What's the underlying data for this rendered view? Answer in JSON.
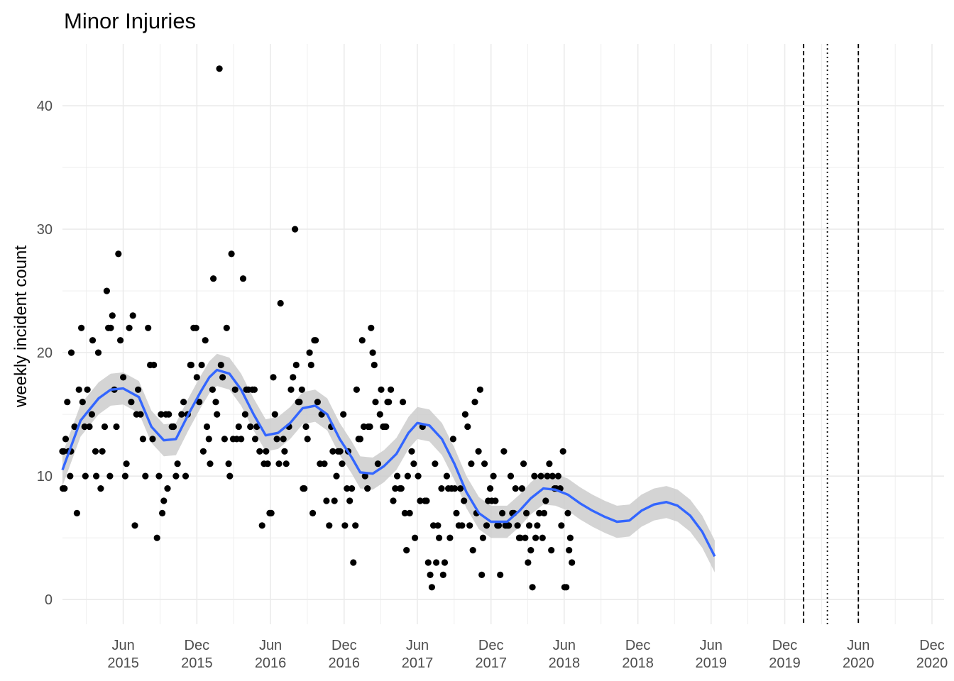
{
  "chart_data": {
    "type": "scatter",
    "title": "Minor Injuries",
    "xlabel": "",
    "ylabel": "weekly incident count",
    "x_type": "date",
    "xlim": [
      "2015-01-01",
      "2020-12-31"
    ],
    "ylim": [
      -2,
      45
    ],
    "y_ticks": [
      0,
      10,
      20,
      30,
      40
    ],
    "x_ticks": [
      {
        "date": "2015-06-01",
        "line1": "Jun",
        "line2": "2015"
      },
      {
        "date": "2015-12-01",
        "line1": "Dec",
        "line2": "2015"
      },
      {
        "date": "2016-06-01",
        "line1": "Jun",
        "line2": "2016"
      },
      {
        "date": "2016-12-01",
        "line1": "Dec",
        "line2": "2016"
      },
      {
        "date": "2017-06-01",
        "line1": "Jun",
        "line2": "2017"
      },
      {
        "date": "2017-12-01",
        "line1": "Dec",
        "line2": "2017"
      },
      {
        "date": "2018-06-01",
        "line1": "Jun",
        "line2": "2018"
      },
      {
        "date": "2018-12-01",
        "line1": "Dec",
        "line2": "2018"
      },
      {
        "date": "2019-06-01",
        "line1": "Jun",
        "line2": "2019"
      },
      {
        "date": "2019-12-01",
        "line1": "Dec",
        "line2": "2019"
      },
      {
        "date": "2020-06-01",
        "line1": "Jun",
        "line2": "2020"
      },
      {
        "date": "2020-12-01",
        "line1": "Dec",
        "line2": "2020"
      }
    ],
    "grid": true,
    "legend": "none",
    "colors": {
      "points": "#000000",
      "smooth": "#3366ff",
      "band": "#cccccc",
      "grid": "#ebebeb"
    },
    "vlines": [
      {
        "date": "2020-01-17",
        "style": "dashed"
      },
      {
        "date": "2020-03-16",
        "style": "dotted"
      },
      {
        "date": "2020-06-01",
        "style": "dashed"
      }
    ],
    "points": [
      [
        "2015-01-01",
        12
      ],
      [
        "2015-01-02",
        9
      ],
      [
        "2015-01-04",
        12
      ],
      [
        "2015-01-06",
        9
      ],
      [
        "2015-01-09",
        13
      ],
      [
        "2015-01-13",
        16
      ],
      [
        "2015-01-16",
        12
      ],
      [
        "2015-01-20",
        10
      ],
      [
        "2015-01-22",
        12
      ],
      [
        "2015-01-23",
        20
      ],
      [
        "2015-01-31",
        14
      ],
      [
        "2015-02-06",
        7
      ],
      [
        "2015-02-11",
        17
      ],
      [
        "2015-02-17",
        22
      ],
      [
        "2015-02-20",
        16
      ],
      [
        "2015-02-25",
        14
      ],
      [
        "2015-02-27",
        10
      ],
      [
        "2015-03-04",
        17
      ],
      [
        "2015-03-09",
        14
      ],
      [
        "2015-03-15",
        15
      ],
      [
        "2015-03-17",
        21
      ],
      [
        "2015-03-24",
        12
      ],
      [
        "2015-03-26",
        10
      ],
      [
        "2015-03-31",
        20
      ],
      [
        "2015-04-06",
        9
      ],
      [
        "2015-04-10",
        12
      ],
      [
        "2015-04-16",
        14
      ],
      [
        "2015-04-21",
        25
      ],
      [
        "2015-04-25",
        22
      ],
      [
        "2015-04-29",
        10
      ],
      [
        "2015-05-01",
        22
      ],
      [
        "2015-05-05",
        23
      ],
      [
        "2015-05-10",
        17
      ],
      [
        "2015-05-15",
        14
      ],
      [
        "2015-05-20",
        28
      ],
      [
        "2015-05-25",
        21
      ],
      [
        "2015-06-01",
        18
      ],
      [
        "2015-06-06",
        10
      ],
      [
        "2015-06-09",
        11
      ],
      [
        "2015-06-16",
        22
      ],
      [
        "2015-06-21",
        16
      ],
      [
        "2015-06-25",
        23
      ],
      [
        "2015-06-30",
        6
      ],
      [
        "2015-07-04",
        15
      ],
      [
        "2015-07-08",
        17
      ],
      [
        "2015-07-14",
        15
      ],
      [
        "2015-07-20",
        13
      ],
      [
        "2015-07-26",
        10
      ],
      [
        "2015-08-02",
        22
      ],
      [
        "2015-08-07",
        19
      ],
      [
        "2015-08-13",
        13
      ],
      [
        "2015-08-16",
        19
      ],
      [
        "2015-08-24",
        5
      ],
      [
        "2015-08-29",
        10
      ],
      [
        "2015-09-03",
        15
      ],
      [
        "2015-09-06",
        7
      ],
      [
        "2015-09-10",
        8
      ],
      [
        "2015-09-15",
        15
      ],
      [
        "2015-09-19",
        9
      ],
      [
        "2015-09-22",
        15
      ],
      [
        "2015-09-30",
        14
      ],
      [
        "2015-10-04",
        14
      ],
      [
        "2015-10-10",
        10
      ],
      [
        "2015-10-14",
        11
      ],
      [
        "2015-10-24",
        15
      ],
      [
        "2015-10-29",
        16
      ],
      [
        "2015-11-03",
        10
      ],
      [
        "2015-11-08",
        15
      ],
      [
        "2015-11-15",
        19
      ],
      [
        "2015-11-17",
        19
      ],
      [
        "2015-11-23",
        22
      ],
      [
        "2015-11-29",
        22
      ],
      [
        "2015-12-01",
        18
      ],
      [
        "2015-12-07",
        16
      ],
      [
        "2015-12-13",
        19
      ],
      [
        "2015-12-17",
        12
      ],
      [
        "2015-12-22",
        21
      ],
      [
        "2015-12-26",
        14
      ],
      [
        "2015-12-31",
        13
      ],
      [
        "2016-01-03",
        11
      ],
      [
        "2016-01-09",
        17
      ],
      [
        "2016-01-11",
        26
      ],
      [
        "2016-01-17",
        16
      ],
      [
        "2016-01-20",
        15
      ],
      [
        "2016-01-26",
        43
      ],
      [
        "2016-01-30",
        19
      ],
      [
        "2016-02-03",
        18
      ],
      [
        "2016-02-08",
        13
      ],
      [
        "2016-02-13",
        22
      ],
      [
        "2016-02-18",
        11
      ],
      [
        "2016-02-21",
        10
      ],
      [
        "2016-02-25",
        28
      ],
      [
        "2016-02-29",
        13
      ],
      [
        "2016-03-05",
        17
      ],
      [
        "2016-03-09",
        13
      ],
      [
        "2016-03-14",
        14
      ],
      [
        "2016-03-20",
        13
      ],
      [
        "2016-03-25",
        26
      ],
      [
        "2016-03-30",
        15
      ],
      [
        "2016-04-02",
        17
      ],
      [
        "2016-04-07",
        17
      ],
      [
        "2016-04-12",
        14
      ],
      [
        "2016-04-17",
        17
      ],
      [
        "2016-04-22",
        17
      ],
      [
        "2016-04-24",
        13
      ],
      [
        "2016-04-28",
        14
      ],
      [
        "2016-05-05",
        12
      ],
      [
        "2016-05-11",
        6
      ],
      [
        "2016-05-16",
        11
      ],
      [
        "2016-05-21",
        12
      ],
      [
        "2016-05-25",
        11
      ],
      [
        "2016-05-30",
        7
      ],
      [
        "2016-06-03",
        7
      ],
      [
        "2016-06-08",
        18
      ],
      [
        "2016-06-12",
        15
      ],
      [
        "2016-06-17",
        13
      ],
      [
        "2016-06-22",
        11
      ],
      [
        "2016-06-26",
        24
      ],
      [
        "2016-07-03",
        13
      ],
      [
        "2016-07-06",
        12
      ],
      [
        "2016-07-10",
        11
      ],
      [
        "2016-07-17",
        14
      ],
      [
        "2016-07-22",
        17
      ],
      [
        "2016-07-27",
        18
      ],
      [
        "2016-08-01",
        30
      ],
      [
        "2016-08-04",
        19
      ],
      [
        "2016-08-09",
        16
      ],
      [
        "2016-08-12",
        16
      ],
      [
        "2016-08-18",
        17
      ],
      [
        "2016-08-21",
        9
      ],
      [
        "2016-08-24",
        9
      ],
      [
        "2016-08-28",
        14
      ],
      [
        "2016-09-01",
        13
      ],
      [
        "2016-09-06",
        20
      ],
      [
        "2016-09-10",
        19
      ],
      [
        "2016-09-14",
        7
      ],
      [
        "2016-09-18",
        21
      ],
      [
        "2016-09-21",
        21
      ],
      [
        "2016-09-26",
        16
      ],
      [
        "2016-10-02",
        11
      ],
      [
        "2016-10-06",
        15
      ],
      [
        "2016-10-13",
        11
      ],
      [
        "2016-10-18",
        8
      ],
      [
        "2016-10-25",
        6
      ],
      [
        "2016-10-30",
        14
      ],
      [
        "2016-11-03",
        12
      ],
      [
        "2016-11-07",
        8
      ],
      [
        "2016-11-12",
        10
      ],
      [
        "2016-11-16",
        12
      ],
      [
        "2016-11-21",
        12
      ],
      [
        "2016-11-26",
        11
      ],
      [
        "2016-11-29",
        15
      ],
      [
        "2016-12-03",
        6
      ],
      [
        "2016-12-08",
        9
      ],
      [
        "2016-12-11",
        12
      ],
      [
        "2016-12-15",
        8
      ],
      [
        "2016-12-20",
        9
      ],
      [
        "2016-12-24",
        3
      ],
      [
        "2016-12-29",
        6
      ],
      [
        "2017-01-01",
        17
      ],
      [
        "2017-01-06",
        13
      ],
      [
        "2017-01-10",
        13
      ],
      [
        "2017-01-15",
        21
      ],
      [
        "2017-01-19",
        14
      ],
      [
        "2017-01-22",
        10
      ],
      [
        "2017-01-28",
        9
      ],
      [
        "2017-01-30",
        14
      ],
      [
        "2017-02-03",
        14
      ],
      [
        "2017-02-06",
        22
      ],
      [
        "2017-02-10",
        20
      ],
      [
        "2017-02-14",
        19
      ],
      [
        "2017-02-17",
        16
      ],
      [
        "2017-02-23",
        11
      ],
      [
        "2017-02-28",
        15
      ],
      [
        "2017-03-03",
        17
      ],
      [
        "2017-03-08",
        14
      ],
      [
        "2017-03-12",
        14
      ],
      [
        "2017-03-15",
        14
      ],
      [
        "2017-03-19",
        16
      ],
      [
        "2017-03-22",
        16
      ],
      [
        "2017-03-27",
        17
      ],
      [
        "2017-04-02",
        8
      ],
      [
        "2017-04-07",
        9
      ],
      [
        "2017-04-12",
        10
      ],
      [
        "2017-04-19",
        9
      ],
      [
        "2017-04-22",
        9
      ],
      [
        "2017-04-26",
        16
      ],
      [
        "2017-05-01",
        7
      ],
      [
        "2017-05-05",
        4
      ],
      [
        "2017-05-08",
        10
      ],
      [
        "2017-05-13",
        7
      ],
      [
        "2017-05-18",
        12
      ],
      [
        "2017-05-23",
        11
      ],
      [
        "2017-05-26",
        5
      ],
      [
        "2017-06-03",
        10
      ],
      [
        "2017-06-08",
        8
      ],
      [
        "2017-06-14",
        14
      ],
      [
        "2017-06-20",
        8
      ],
      [
        "2017-06-24",
        8
      ],
      [
        "2017-06-28",
        3
      ],
      [
        "2017-07-03",
        2
      ],
      [
        "2017-07-07",
        1
      ],
      [
        "2017-07-11",
        6
      ],
      [
        "2017-07-15",
        11
      ],
      [
        "2017-07-18",
        3
      ],
      [
        "2017-07-22",
        6
      ],
      [
        "2017-07-25",
        5
      ],
      [
        "2017-07-31",
        9
      ],
      [
        "2017-08-04",
        2
      ],
      [
        "2017-08-08",
        3
      ],
      [
        "2017-08-13",
        10
      ],
      [
        "2017-08-17",
        9
      ],
      [
        "2017-08-21",
        5
      ],
      [
        "2017-08-25",
        9
      ],
      [
        "2017-08-29",
        13
      ],
      [
        "2017-09-02",
        9
      ],
      [
        "2017-09-06",
        7
      ],
      [
        "2017-09-12",
        6
      ],
      [
        "2017-09-16",
        9
      ],
      [
        "2017-09-20",
        6
      ],
      [
        "2017-09-25",
        8
      ],
      [
        "2017-09-28",
        15
      ],
      [
        "2017-10-04",
        14
      ],
      [
        "2017-10-09",
        6
      ],
      [
        "2017-10-13",
        11
      ],
      [
        "2017-10-17",
        4
      ],
      [
        "2017-10-22",
        16
      ],
      [
        "2017-10-26",
        7
      ],
      [
        "2017-10-31",
        12
      ],
      [
        "2017-11-04",
        17
      ],
      [
        "2017-11-08",
        2
      ],
      [
        "2017-11-11",
        5
      ],
      [
        "2017-11-15",
        11
      ],
      [
        "2017-11-20",
        6
      ],
      [
        "2017-11-24",
        8
      ],
      [
        "2017-11-29",
        9
      ],
      [
        "2017-12-03",
        8
      ],
      [
        "2017-12-07",
        10
      ],
      [
        "2017-12-12",
        8
      ],
      [
        "2017-12-17",
        6
      ],
      [
        "2017-12-20",
        6
      ],
      [
        "2017-12-24",
        2
      ],
      [
        "2017-12-29",
        7
      ],
      [
        "2018-01-02",
        12
      ],
      [
        "2018-01-06",
        6
      ],
      [
        "2018-01-10",
        6
      ],
      [
        "2018-01-14",
        6
      ],
      [
        "2018-01-19",
        10
      ],
      [
        "2018-01-23",
        7
      ],
      [
        "2018-01-27",
        7
      ],
      [
        "2018-01-31",
        9
      ],
      [
        "2018-02-05",
        6
      ],
      [
        "2018-02-09",
        5
      ],
      [
        "2018-02-12",
        5
      ],
      [
        "2018-02-16",
        9
      ],
      [
        "2018-02-20",
        11
      ],
      [
        "2018-02-24",
        5
      ],
      [
        "2018-02-27",
        7
      ],
      [
        "2018-03-03",
        3
      ],
      [
        "2018-03-06",
        6
      ],
      [
        "2018-03-10",
        4
      ],
      [
        "2018-03-14",
        1
      ],
      [
        "2018-03-19",
        10
      ],
      [
        "2018-03-22",
        5
      ],
      [
        "2018-03-26",
        6
      ],
      [
        "2018-03-31",
        7
      ],
      [
        "2018-04-04",
        10
      ],
      [
        "2018-04-08",
        5
      ],
      [
        "2018-04-12",
        7
      ],
      [
        "2018-04-16",
        8
      ],
      [
        "2018-04-20",
        10
      ],
      [
        "2018-04-25",
        11
      ],
      [
        "2018-04-30",
        4
      ],
      [
        "2018-05-03",
        10
      ],
      [
        "2018-05-08",
        9
      ],
      [
        "2018-05-12",
        9
      ],
      [
        "2018-05-17",
        10
      ],
      [
        "2018-05-22",
        9
      ],
      [
        "2018-05-25",
        6
      ],
      [
        "2018-05-29",
        12
      ],
      [
        "2018-06-02",
        1
      ],
      [
        "2018-06-06",
        1
      ],
      [
        "2018-06-10",
        7
      ],
      [
        "2018-06-13",
        4
      ],
      [
        "2018-06-16",
        5
      ],
      [
        "2018-06-20",
        3
      ]
    ],
    "smooth": [
      [
        "2015-01-01",
        10.5
      ],
      [
        "2015-02-15",
        14.5
      ],
      [
        "2015-04-01",
        16.3
      ],
      [
        "2015-05-01",
        17
      ],
      [
        "2015-06-01",
        17.1
      ],
      [
        "2015-07-10",
        16.4
      ],
      [
        "2015-08-10",
        14
      ],
      [
        "2015-09-10",
        12.9
      ],
      [
        "2015-10-10",
        13
      ],
      [
        "2015-11-10",
        15
      ],
      [
        "2015-12-10",
        16.8
      ],
      [
        "2016-01-01",
        18
      ],
      [
        "2016-01-20",
        18.6
      ],
      [
        "2016-02-20",
        18.3
      ],
      [
        "2016-03-20",
        17
      ],
      [
        "2016-04-20",
        15
      ],
      [
        "2016-05-20",
        13.3
      ],
      [
        "2016-06-20",
        13.5
      ],
      [
        "2016-07-20",
        14.3
      ],
      [
        "2016-08-20",
        15.5
      ],
      [
        "2016-09-20",
        15.7
      ],
      [
        "2016-10-20",
        15
      ],
      [
        "2016-11-20",
        13
      ],
      [
        "2016-12-20",
        11.5
      ],
      [
        "2017-01-10",
        10.3
      ],
      [
        "2017-02-10",
        10.2
      ],
      [
        "2017-03-10",
        10.8
      ],
      [
        "2017-04-10",
        11.8
      ],
      [
        "2017-05-10",
        13.5
      ],
      [
        "2017-06-01",
        14.3
      ],
      [
        "2017-07-01",
        14.1
      ],
      [
        "2017-08-01",
        13
      ],
      [
        "2017-09-01",
        11
      ],
      [
        "2017-10-01",
        8.7
      ],
      [
        "2017-11-01",
        7
      ],
      [
        "2017-12-01",
        6.3
      ],
      [
        "2018-01-10",
        6.3
      ],
      [
        "2018-02-10",
        7.2
      ],
      [
        "2018-03-10",
        8.2
      ],
      [
        "2018-04-10",
        9
      ],
      [
        "2018-05-10",
        8.9
      ],
      [
        "2018-06-10",
        8.5
      ],
      [
        "2018-07-10",
        7.8
      ],
      [
        "2018-08-10",
        7.2
      ],
      [
        "2018-09-10",
        6.7
      ],
      [
        "2018-10-10",
        6.3
      ],
      [
        "2018-11-10",
        6.4
      ],
      [
        "2018-12-10",
        7.2
      ],
      [
        "2019-01-10",
        7.7
      ],
      [
        "2019-02-10",
        7.9
      ],
      [
        "2019-03-10",
        7.6
      ],
      [
        "2019-04-10",
        6.8
      ],
      [
        "2019-05-10",
        5.5
      ],
      [
        "2019-06-10",
        3.5
      ]
    ]
  }
}
